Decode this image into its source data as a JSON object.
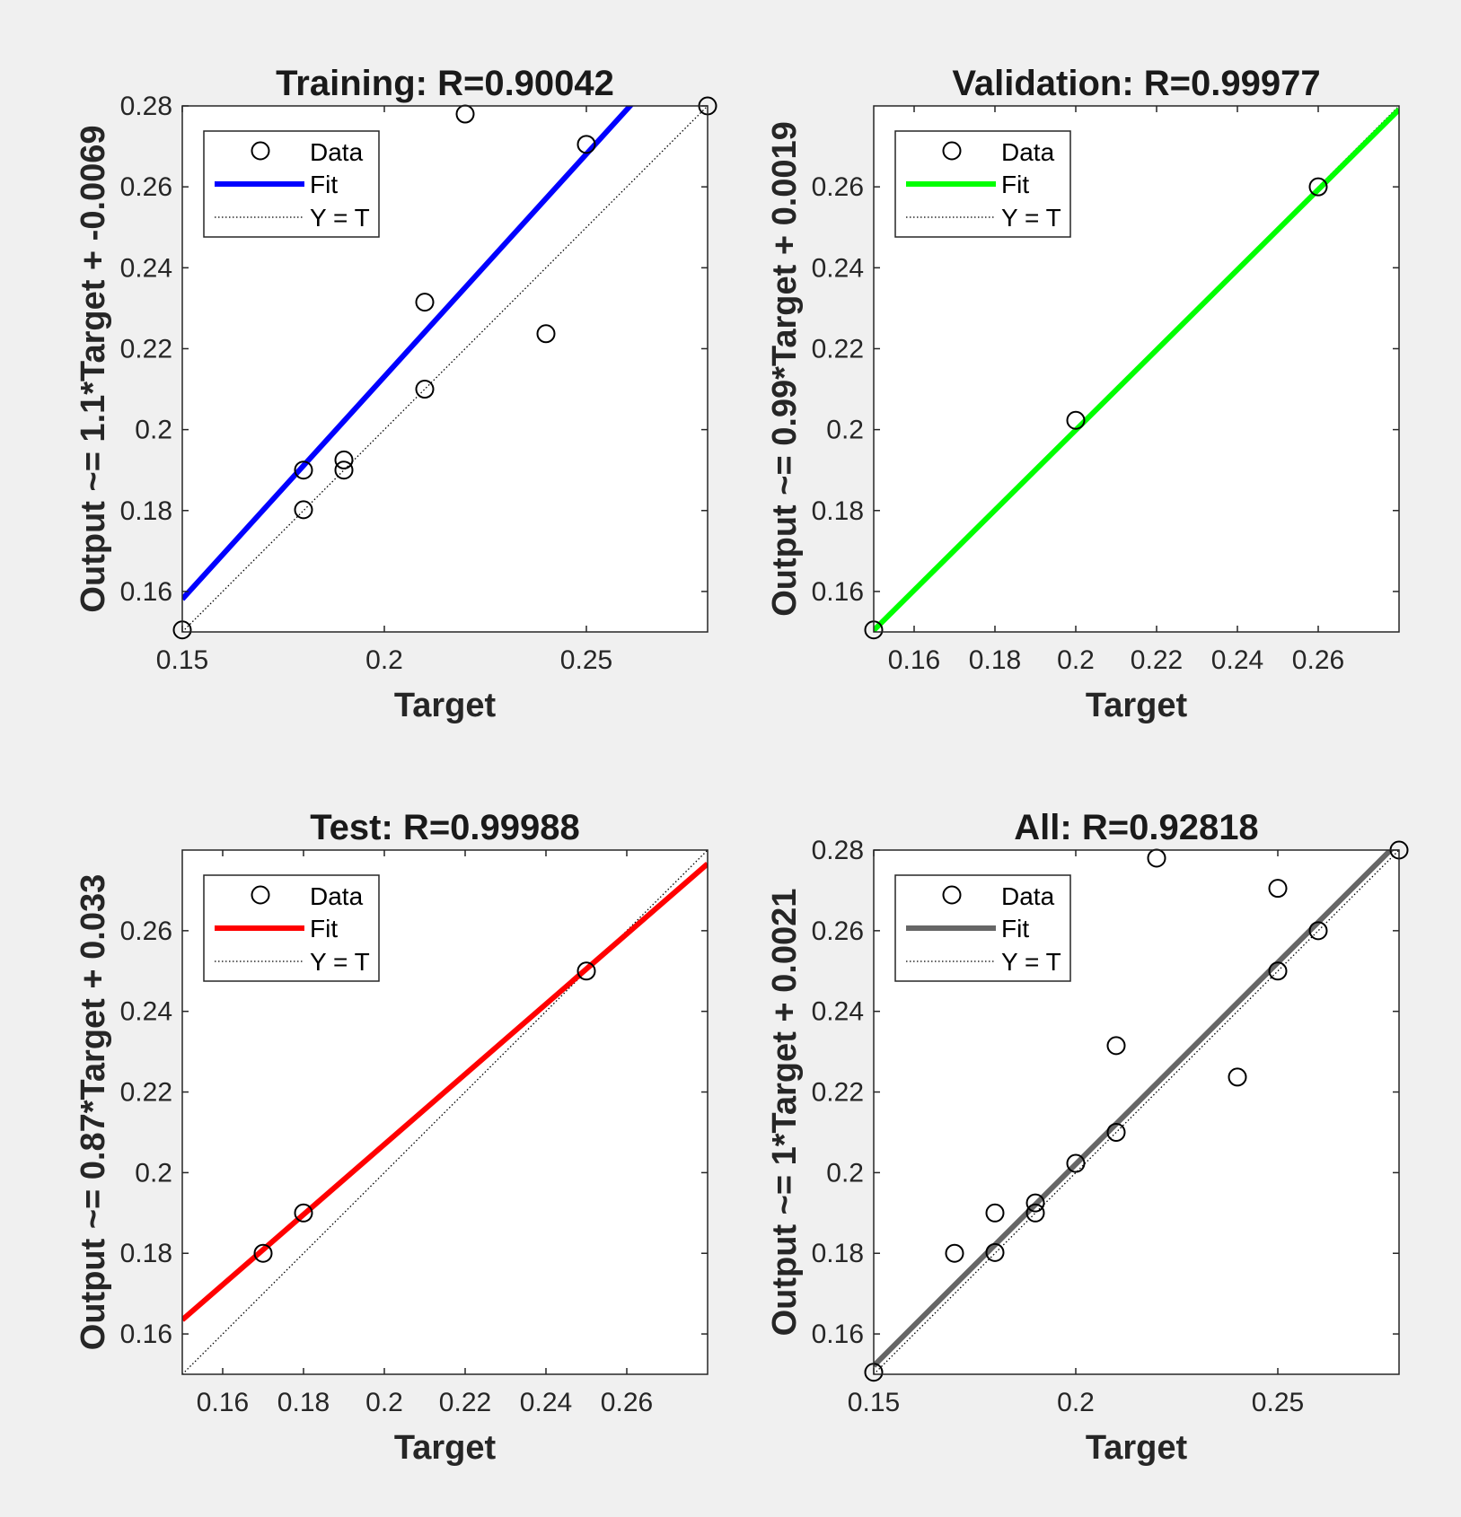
{
  "figure": {
    "background": "#f0f0f0"
  },
  "legend_labels": {
    "data": "Data",
    "fit": "Fit",
    "ideal": "Y = T"
  },
  "chart_data": [
    {
      "type": "scatter",
      "title": "Training: R=0.90042",
      "xlabel": "Target",
      "ylabel": "Output ~= 1.1*Target + -0.0069",
      "xlim": [
        0.15,
        0.28
      ],
      "ylim": [
        0.15,
        0.28
      ],
      "xticks": [
        0.15,
        0.2,
        0.25
      ],
      "xtick_labels": [
        "0.15",
        "0.2",
        "0.25"
      ],
      "yticks": [
        0.16,
        0.18,
        0.2,
        0.22,
        0.24,
        0.26,
        0.28
      ],
      "ytick_labels": [
        "0.16",
        "0.18",
        "0.2",
        "0.22",
        "0.24",
        "0.26",
        "0.28"
      ],
      "fit_color": "#0000ff",
      "fit": {
        "slope": 1.1,
        "intercept": -0.0069
      },
      "points": [
        [
          0.15,
          0.1505
        ],
        [
          0.18,
          0.19
        ],
        [
          0.18,
          0.1802
        ],
        [
          0.19,
          0.1925
        ],
        [
          0.19,
          0.19
        ],
        [
          0.21,
          0.2315
        ],
        [
          0.21,
          0.21
        ],
        [
          0.22,
          0.278
        ],
        [
          0.24,
          0.2237
        ],
        [
          0.25,
          0.2705
        ],
        [
          0.28,
          0.28
        ]
      ],
      "legend": {
        "position": "top-left"
      },
      "grid": false
    },
    {
      "type": "scatter",
      "title": "Validation: R=0.99977",
      "xlabel": "Target",
      "ylabel": "Output ~= 0.99*Target + 0.0019",
      "xlim": [
        0.15,
        0.28
      ],
      "ylim": [
        0.15,
        0.28
      ],
      "xticks": [
        0.16,
        0.18,
        0.2,
        0.22,
        0.24,
        0.26
      ],
      "xtick_labels": [
        "0.16",
        "0.18",
        "0.2",
        "0.22",
        "0.24",
        "0.26"
      ],
      "yticks": [
        0.16,
        0.18,
        0.2,
        0.22,
        0.24,
        0.26
      ],
      "ytick_labels": [
        "0.16",
        "0.18",
        "0.2",
        "0.22",
        "0.24",
        "0.26"
      ],
      "fit_color": "#00ff00",
      "fit": {
        "slope": 0.99,
        "intercept": 0.0019
      },
      "points": [
        [
          0.15,
          0.1505
        ],
        [
          0.2,
          0.2023
        ],
        [
          0.26,
          0.26
        ]
      ],
      "legend": {
        "position": "top-left"
      },
      "grid": false
    },
    {
      "type": "scatter",
      "title": "Test: R=0.99988",
      "xlabel": "Target",
      "ylabel": "Output ~= 0.87*Target + 0.033",
      "xlim": [
        0.15,
        0.28
      ],
      "ylim": [
        0.15,
        0.28
      ],
      "xticks": [
        0.16,
        0.18,
        0.2,
        0.22,
        0.24,
        0.26
      ],
      "xtick_labels": [
        "0.16",
        "0.18",
        "0.2",
        "0.22",
        "0.24",
        "0.26"
      ],
      "yticks": [
        0.16,
        0.18,
        0.2,
        0.22,
        0.24,
        0.26
      ],
      "ytick_labels": [
        "0.16",
        "0.18",
        "0.2",
        "0.22",
        "0.24",
        "0.26"
      ],
      "fit_color": "#ff0000",
      "fit": {
        "slope": 0.87,
        "intercept": 0.033
      },
      "points": [
        [
          0.17,
          0.18
        ],
        [
          0.18,
          0.19
        ],
        [
          0.25,
          0.25
        ]
      ],
      "legend": {
        "position": "top-left"
      },
      "grid": false
    },
    {
      "type": "scatter",
      "title": "All: R=0.92818",
      "xlabel": "Target",
      "ylabel": "Output ~= 1*Target + 0.0021",
      "xlim": [
        0.15,
        0.28
      ],
      "ylim": [
        0.15,
        0.28
      ],
      "xticks": [
        0.15,
        0.2,
        0.25
      ],
      "xtick_labels": [
        "0.15",
        "0.2",
        "0.25"
      ],
      "yticks": [
        0.16,
        0.18,
        0.2,
        0.22,
        0.24,
        0.26,
        0.28
      ],
      "ytick_labels": [
        "0.16",
        "0.18",
        "0.2",
        "0.22",
        "0.24",
        "0.26",
        "0.28"
      ],
      "fit_color": "#666666",
      "fit": {
        "slope": 1.0,
        "intercept": 0.0021
      },
      "points": [
        [
          0.15,
          0.1505
        ],
        [
          0.17,
          0.18
        ],
        [
          0.18,
          0.19
        ],
        [
          0.18,
          0.1802
        ],
        [
          0.19,
          0.1925
        ],
        [
          0.19,
          0.19
        ],
        [
          0.2,
          0.2023
        ],
        [
          0.21,
          0.2315
        ],
        [
          0.21,
          0.21
        ],
        [
          0.22,
          0.278
        ],
        [
          0.24,
          0.2237
        ],
        [
          0.25,
          0.2705
        ],
        [
          0.25,
          0.25
        ],
        [
          0.26,
          0.26
        ],
        [
          0.28,
          0.28
        ]
      ],
      "legend": {
        "position": "top-left"
      },
      "grid": false
    }
  ]
}
